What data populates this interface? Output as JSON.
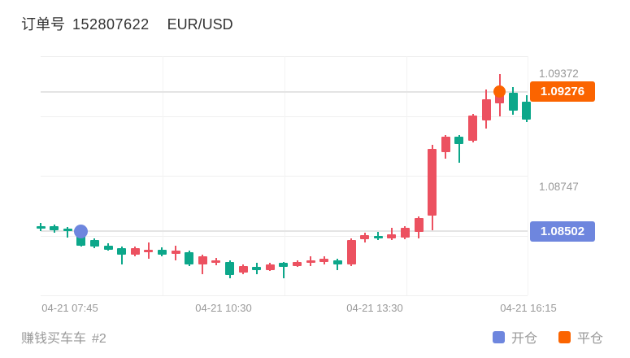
{
  "header": {
    "order_label": "订单号",
    "order_id": "152807622",
    "symbol": "EUR/USD"
  },
  "footer": {
    "strategy_name": "赚钱买车车",
    "strategy_number": "#2",
    "legend": [
      {
        "label": "开仓",
        "color": "#6e86de"
      },
      {
        "label": "平仓",
        "color": "#fb6400"
      }
    ]
  },
  "chart_data": {
    "type": "candlestick",
    "symbol": "EUR/USD",
    "x_ticks": [
      "04-21 07:45",
      "04-21 10:30",
      "04-21 13:30",
      "04-21 16:15"
    ],
    "y_labels": {
      "max": "1.09372",
      "close": "1.09276",
      "mid": "1.08747",
      "entry": "1.08502"
    },
    "ylim": [
      1.08147,
      1.09473
    ],
    "grid": true,
    "colors": {
      "up": "#ec5160",
      "down": "#0ca78a",
      "open_marker": "#6e86de",
      "close_marker": "#fb6400"
    },
    "hlines": [
      1.09276,
      1.08502
    ],
    "candles": [
      [
        1.08532,
        1.08547,
        1.08502,
        1.08517
      ],
      [
        1.08532,
        1.0854,
        1.08495,
        1.08507
      ],
      [
        1.08517,
        1.08526,
        1.08469,
        1.08502
      ],
      [
        1.08501,
        1.08506,
        1.08417,
        1.08423
      ],
      [
        1.08454,
        1.08463,
        1.08408,
        1.08416
      ],
      [
        1.08423,
        1.08435,
        1.08395,
        1.08401
      ],
      [
        1.08408,
        1.08417,
        1.08318,
        1.08371
      ],
      [
        1.08371,
        1.08417,
        1.08363,
        1.08408
      ],
      [
        1.08386,
        1.08438,
        1.08348,
        1.08401
      ],
      [
        1.08401,
        1.08413,
        1.08363,
        1.08371
      ],
      [
        1.08378,
        1.08423,
        1.08341,
        1.08394
      ],
      [
        1.08386,
        1.08395,
        1.08309,
        1.08318
      ],
      [
        1.08318,
        1.08372,
        1.08266,
        1.08363
      ],
      [
        1.08326,
        1.08354,
        1.08314,
        1.08341
      ],
      [
        1.08333,
        1.08341,
        1.08243,
        1.08258
      ],
      [
        1.08273,
        1.08318,
        1.08264,
        1.08311
      ],
      [
        1.08303,
        1.08326,
        1.08266,
        1.08288
      ],
      [
        1.08288,
        1.08327,
        1.08282,
        1.08318
      ],
      [
        1.08326,
        1.08333,
        1.08243,
        1.08303
      ],
      [
        1.08311,
        1.08341,
        1.08304,
        1.08333
      ],
      [
        1.08329,
        1.08363,
        1.08311,
        1.08341
      ],
      [
        1.08333,
        1.08363,
        1.08318,
        1.08348
      ],
      [
        1.08341,
        1.0835,
        1.08288,
        1.08318
      ],
      [
        1.08318,
        1.08463,
        1.08309,
        1.08454
      ],
      [
        1.08458,
        1.08494,
        1.0844,
        1.08481
      ],
      [
        1.08476,
        1.08499,
        1.08454,
        1.08461
      ],
      [
        1.08461,
        1.08521,
        1.08454,
        1.08484
      ],
      [
        1.08468,
        1.0853,
        1.0846,
        1.08521
      ],
      [
        1.08499,
        1.08584,
        1.08461,
        1.08574
      ],
      [
        1.08589,
        1.0898,
        1.08506,
        1.08957
      ],
      [
        1.08942,
        1.09035,
        1.08905,
        1.09025
      ],
      [
        1.09025,
        1.09035,
        1.08882,
        1.08987
      ],
      [
        1.09004,
        1.09153,
        1.08995,
        1.09144
      ],
      [
        1.09117,
        1.09288,
        1.09072,
        1.09234
      ],
      [
        1.09211,
        1.09372,
        1.09139,
        1.09256
      ],
      [
        1.0927,
        1.09303,
        1.09148,
        1.09171
      ],
      [
        1.0922,
        1.09258,
        1.09108,
        1.09121
      ]
    ],
    "markers": [
      {
        "type": "open",
        "index": 3,
        "price": 1.08502,
        "label": "开仓"
      },
      {
        "type": "close",
        "index": 34,
        "price": 1.09276,
        "label": "平仓"
      }
    ]
  }
}
